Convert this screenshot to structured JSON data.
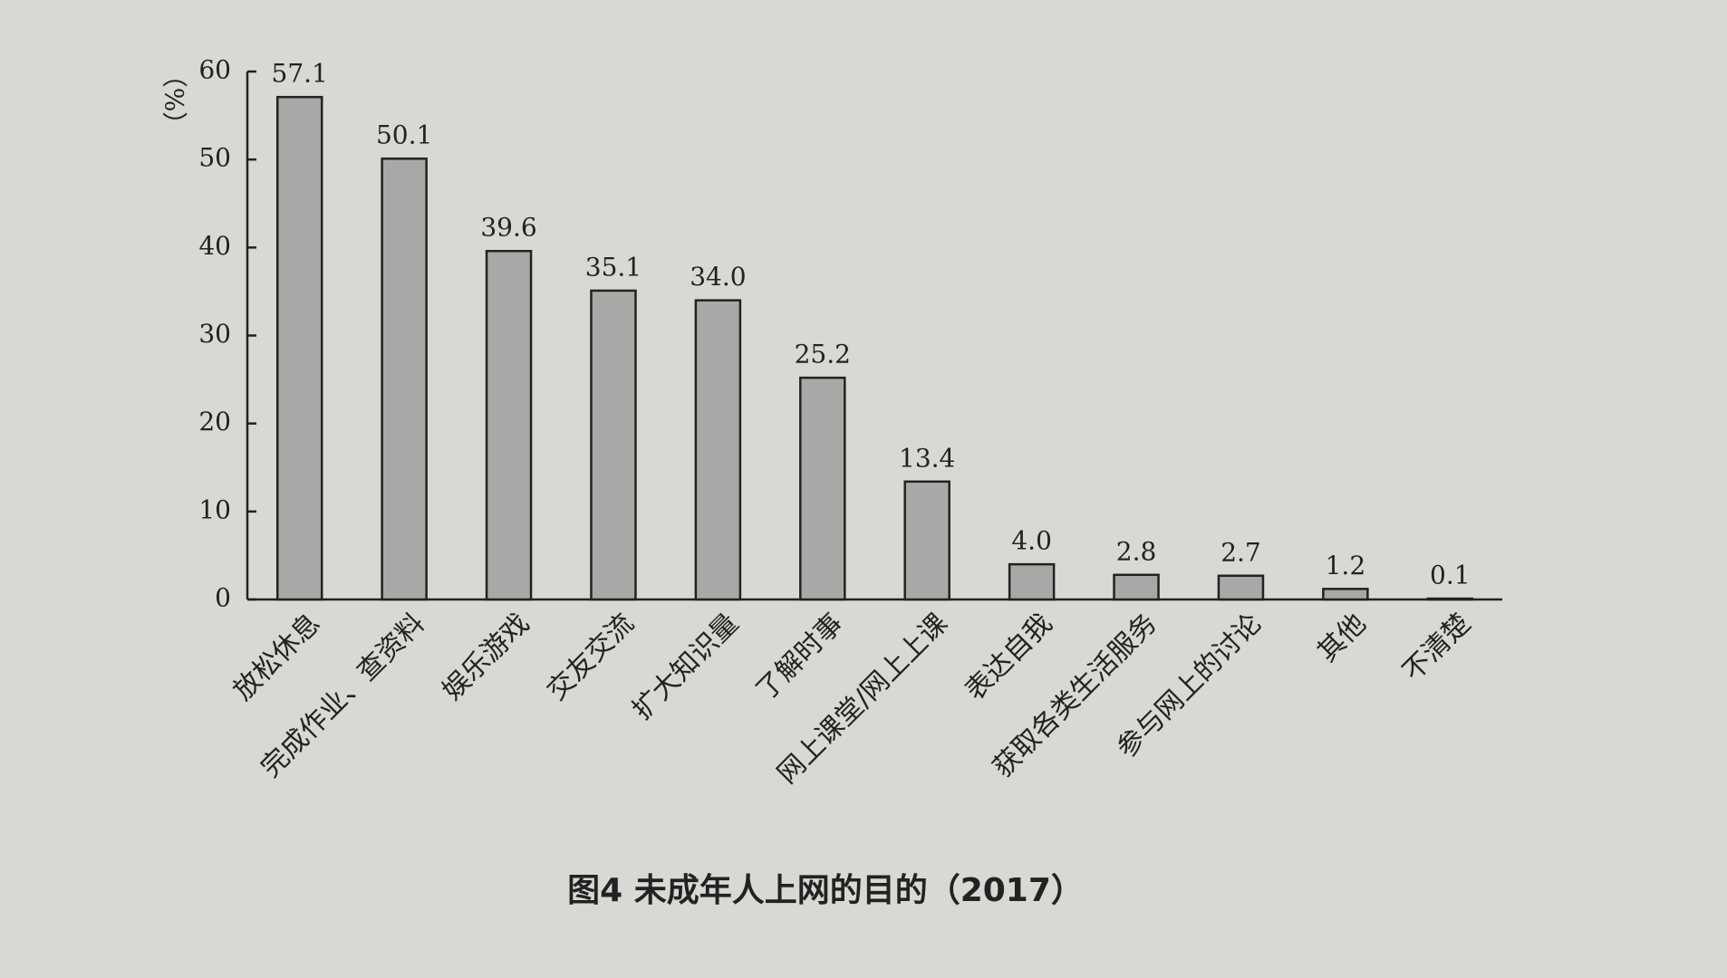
{
  "chart_data": {
    "type": "bar",
    "title": "图4 未成年人上网的目的（2017）",
    "y_label": "（%）",
    "categories": [
      "放松休息",
      "完成作业、查资料",
      "娱乐游戏",
      "交友交流",
      "扩大知识量",
      "了解时事",
      "网上课堂/网上上课",
      "表达自我",
      "获取各类生活服务",
      "参与网上的讨论",
      "其他",
      "不清楚"
    ],
    "values": [
      57.1,
      50.1,
      39.6,
      35.1,
      34.0,
      25.2,
      13.4,
      4.0,
      2.8,
      2.7,
      1.2,
      0.1
    ],
    "value_labels": [
      "57.1",
      "50.1",
      "39.6",
      "35.1",
      "34.0",
      "25.2",
      "13.4",
      "4.0",
      "2.8",
      "2.7",
      "1.2",
      "0.1"
    ],
    "color": "#a8a8a6",
    "ylim": [
      0,
      60
    ],
    "yticks": [
      0,
      10,
      20,
      30,
      40,
      50,
      60
    ],
    "grid": false
  }
}
